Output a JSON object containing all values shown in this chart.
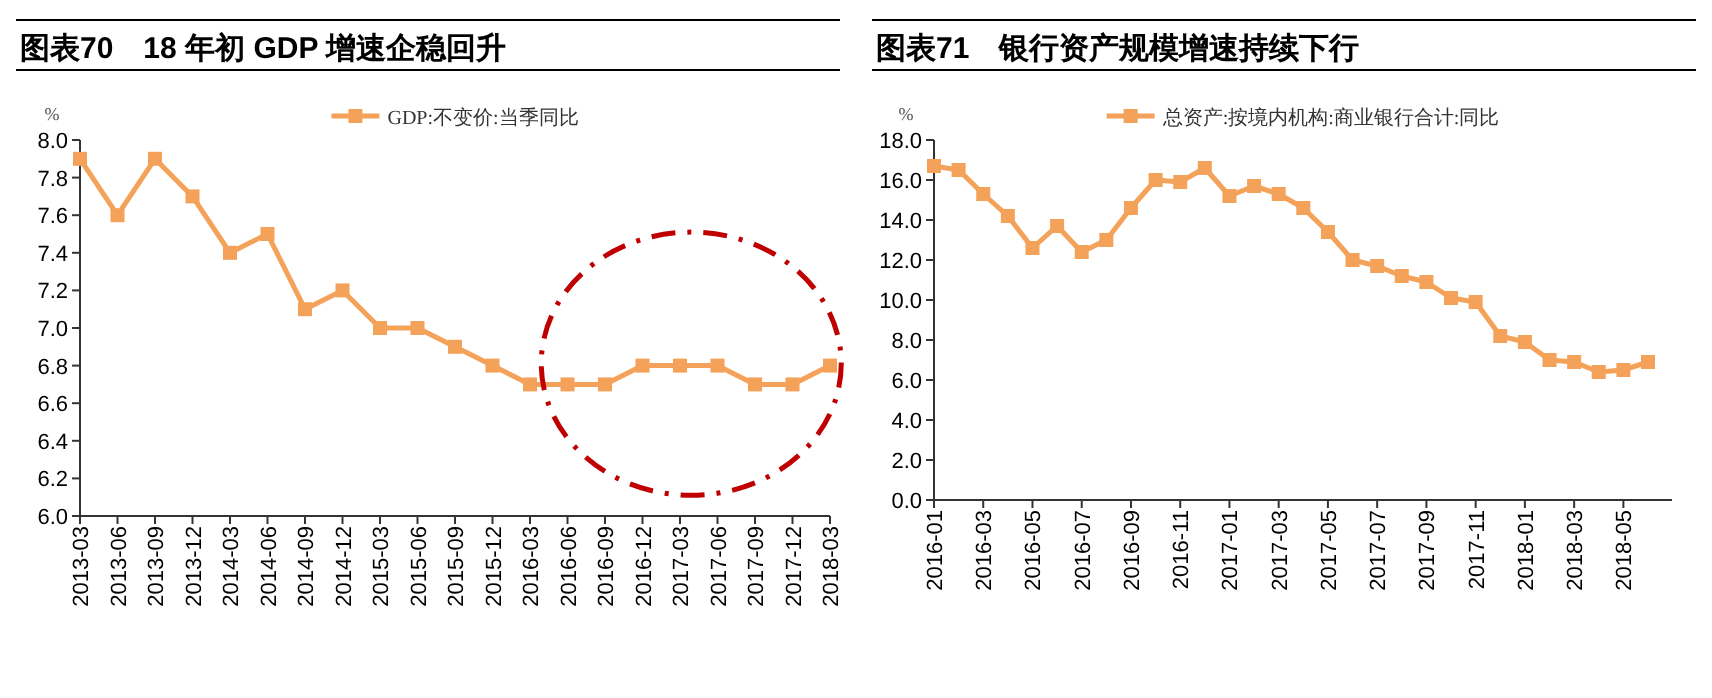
{
  "chart_data": [
    {
      "type": "line",
      "title": "图表70　18 年初 GDP 增速企稳回升",
      "ylabel": "%",
      "categories": [
        "2013-03",
        "2013-06",
        "2013-09",
        "2013-12",
        "2014-03",
        "2014-06",
        "2014-09",
        "2014-12",
        "2015-03",
        "2015-06",
        "2015-09",
        "2015-12",
        "2016-03",
        "2016-06",
        "2016-09",
        "2016-12",
        "2017-03",
        "2017-06",
        "2017-09",
        "2017-12",
        "2018-03"
      ],
      "series": [
        {
          "name": "GDP:不变价:当季同比",
          "color": "#f4a259",
          "values": [
            7.9,
            7.6,
            7.9,
            7.7,
            7.4,
            7.5,
            7.1,
            7.2,
            7.0,
            7.0,
            6.9,
            6.8,
            6.7,
            6.7,
            6.7,
            6.8,
            6.8,
            6.8,
            6.7,
            6.7,
            6.8
          ]
        }
      ],
      "ylim": [
        6.0,
        8.0
      ],
      "yticks": [
        {
          "value": 6.0,
          "label": "6.0"
        },
        {
          "value": 6.2,
          "label": "6.2"
        },
        {
          "value": 6.4,
          "label": "6.4"
        },
        {
          "value": 6.6,
          "label": "6.6"
        },
        {
          "value": 6.8,
          "label": "6.8"
        },
        {
          "value": 7.0,
          "label": "7.0"
        },
        {
          "value": 7.2,
          "label": "7.2"
        },
        {
          "value": 7.4,
          "label": "7.4"
        },
        {
          "value": 7.6,
          "label": "7.6"
        },
        {
          "value": 7.8,
          "label": "7.8"
        },
        {
          "value": 8.0,
          "label": "8.0"
        }
      ],
      "legend": "top",
      "marker": "square",
      "grid": false
    },
    {
      "type": "line",
      "title": "图表71　银行资产规模增速持续下行",
      "ylabel": "%",
      "categories": [
        "2016-01",
        null,
        "2016-03",
        null,
        "2016-05",
        null,
        "2016-07",
        null,
        "2016-09",
        null,
        "2016-11",
        null,
        "2017-01",
        null,
        "2017-03",
        null,
        "2017-05",
        null,
        "2017-07",
        null,
        "2017-09",
        null,
        "2017-11",
        null,
        "2018-01",
        null,
        "2018-03",
        null,
        "2018-05",
        null
      ],
      "series": [
        {
          "name": "总资产:按境内机构:商业银行合计:同比",
          "color": "#f4a259",
          "values": [
            16.7,
            16.5,
            15.3,
            14.2,
            12.6,
            13.7,
            12.4,
            13.0,
            14.6,
            16.0,
            15.9,
            16.6,
            15.2,
            15.7,
            15.3,
            14.6,
            13.4,
            12.0,
            11.7,
            11.2,
            10.9,
            10.1,
            9.9,
            8.2,
            7.9,
            7.0,
            6.9,
            6.4,
            6.5,
            6.9
          ]
        }
      ],
      "ylim": [
        0.0,
        18.0
      ],
      "yticks": [
        {
          "value": 0,
          "label": "0.0"
        },
        {
          "value": 2,
          "label": "2.0"
        },
        {
          "value": 4,
          "label": "4.0"
        },
        {
          "value": 6,
          "label": "6.0"
        },
        {
          "value": 8,
          "label": "8.0"
        },
        {
          "value": 10,
          "label": "10.0"
        },
        {
          "value": 12,
          "label": "12.0"
        },
        {
          "value": 14,
          "label": "14.0"
        },
        {
          "value": 16,
          "label": "16.0"
        },
        {
          "value": 18,
          "label": "18.0"
        }
      ],
      "legend": "top",
      "marker": "square",
      "grid": false
    }
  ]
}
